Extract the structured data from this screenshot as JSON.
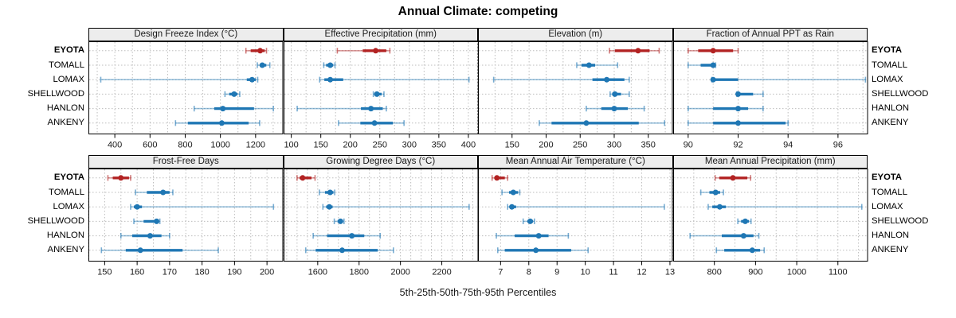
{
  "title": "Annual Climate: competing",
  "axis_label": "5th-25th-50th-75th-95th Percentiles",
  "colors": {
    "highlight": "#b22222",
    "normal": "#1f77b4",
    "grid": "#bdbdbd",
    "strip_bg": "#ededed",
    "panel_border": "#000000"
  },
  "chart_data": {
    "type": "scatter",
    "variant": "trellis-percentile-dotplot-with-error-bars",
    "title": "Annual Climate: competing",
    "xlabel": "5th-25th-50th-75th-95th Percentiles",
    "categories": [
      "EYOTA",
      "TOMALL",
      "LOMAX",
      "SHELLWOOD",
      "HANLON",
      "ANKENY"
    ],
    "highlight_category": "EYOTA",
    "grid": "dotted",
    "legend": "none",
    "percentiles_order": [
      "p5",
      "p25",
      "p50",
      "p75",
      "p95"
    ],
    "panels": [
      {
        "title": "Design Freeze Index (°C)",
        "row": 0,
        "col": 0,
        "xlim": [
          250,
          1357
        ],
        "ticks": [
          400,
          600,
          800,
          1000,
          1200
        ],
        "grid_step": 100,
        "series": [
          {
            "site": "EYOTA",
            "values": [
              1145,
              1172,
              1226,
              1252,
              1262
            ]
          },
          {
            "site": "TOMALL",
            "values": [
              1210,
              1226,
              1238,
              1261,
              1281
            ]
          },
          {
            "site": "LOMAX",
            "values": [
              320,
              1150,
              1180,
              1201,
              1212
            ]
          },
          {
            "site": "SHELLWOOD",
            "values": [
              1026,
              1050,
              1078,
              1097,
              1110
            ]
          },
          {
            "site": "HANLON",
            "values": [
              851,
              965,
              1014,
              1191,
              1301
            ]
          },
          {
            "site": "ANKENY",
            "values": [
              745,
              815,
              1008,
              1160,
              1223
            ]
          }
        ]
      },
      {
        "title": "Effective Precipitation (mm)",
        "row": 0,
        "col": 1,
        "xlim": [
          87,
          417
        ],
        "ticks": [
          100,
          150,
          200,
          250,
          300,
          350,
          400
        ],
        "grid_step": 25,
        "series": [
          {
            "site": "EYOTA",
            "values": [
              178,
              221,
              243,
              261,
              267
            ]
          },
          {
            "site": "TOMALL",
            "values": [
              155,
              159,
              166,
              171,
              174
            ]
          },
          {
            "site": "LOMAX",
            "values": [
              148,
              156,
              166,
              188,
              401
            ]
          },
          {
            "site": "SHELLWOOD",
            "values": [
              239,
              241,
              245,
              253,
              257
            ]
          },
          {
            "site": "HANLON",
            "values": [
              110,
              218,
              235,
              255,
              261
            ]
          },
          {
            "site": "ANKENY",
            "values": [
              180,
              217,
              241,
              272,
              291
            ]
          }
        ]
      },
      {
        "title": "Elevation (m)",
        "row": 0,
        "col": 2,
        "xlim": [
          100,
          386
        ],
        "ticks": [
          150,
          200,
          250,
          300,
          350
        ],
        "grid_step": 25,
        "series": [
          {
            "site": "EYOTA",
            "values": [
              293,
              301,
              335,
              352,
              366
            ]
          },
          {
            "site": "TOMALL",
            "values": [
              245,
              252,
              263,
              272,
              305
            ]
          },
          {
            "site": "LOMAX",
            "values": [
              123,
              268,
              289,
              315,
              322
            ]
          },
          {
            "site": "SHELLWOOD",
            "values": [
              294,
              297,
              301,
              310,
              322
            ]
          },
          {
            "site": "HANLON",
            "values": [
              259,
              281,
              300,
              320,
              344
            ]
          },
          {
            "site": "ANKENY",
            "values": [
              190,
              208,
              259,
              336,
              374
            ]
          }
        ]
      },
      {
        "title": "Fraction of Annual PPT as Rain",
        "row": 0,
        "col": 3,
        "xlim": [
          89.4,
          97.2
        ],
        "ticks": [
          90,
          92,
          94,
          96
        ],
        "grid_step": 1,
        "series": [
          {
            "site": "EYOTA",
            "values": [
              90,
              90.4,
              91,
              91.8,
              92
            ]
          },
          {
            "site": "TOMALL",
            "values": [
              90,
              90.5,
              91,
              91.05,
              91.1
            ]
          },
          {
            "site": "LOMAX",
            "values": [
              90.95,
              91,
              91,
              92,
              97.1
            ]
          },
          {
            "site": "SHELLWOOD",
            "values": [
              91.95,
              92,
              92,
              92.6,
              93
            ]
          },
          {
            "site": "HANLON",
            "values": [
              90,
              91,
              92,
              92.4,
              93
            ]
          },
          {
            "site": "ANKENY",
            "values": [
              90,
              91,
              92,
              93.9,
              94
            ]
          }
        ]
      },
      {
        "title": "Frost-Free Days",
        "row": 1,
        "col": 0,
        "xlim": [
          145,
          205
        ],
        "ticks": [
          150,
          160,
          170,
          180,
          190,
          200
        ],
        "grid_step": 5,
        "series": [
          {
            "site": "EYOTA",
            "values": [
              151,
              152.5,
              155,
              157.5,
              158
            ]
          },
          {
            "site": "TOMALL",
            "values": [
              159.5,
              163,
              168,
              170,
              171
            ]
          },
          {
            "site": "LOMAX",
            "values": [
              158,
              159,
              160,
              161.5,
              202
            ]
          },
          {
            "site": "SHELLWOOD",
            "values": [
              159,
              162,
              166,
              166.5,
              167
            ]
          },
          {
            "site": "HANLON",
            "values": [
              155,
              158.5,
              164,
              167.5,
              170
            ]
          },
          {
            "site": "ANKENY",
            "values": [
              149,
              156.5,
              161,
              174,
              185
            ]
          }
        ]
      },
      {
        "title": "Growing Degree Days (°C)",
        "row": 1,
        "col": 1,
        "xlim": [
          1435,
          2377
        ],
        "ticks": [
          1600,
          1800,
          2000,
          2200
        ],
        "grid_step": 50,
        "series": [
          {
            "site": "EYOTA",
            "values": [
              1500,
              1512,
              1527,
              1570,
              1587
            ]
          },
          {
            "site": "TOMALL",
            "values": [
              1608,
              1635,
              1660,
              1676,
              1682
            ]
          },
          {
            "site": "LOMAX",
            "values": [
              1625,
              1641,
              1656,
              1672,
              2332
            ]
          },
          {
            "site": "SHELLWOOD",
            "values": [
              1680,
              1696,
              1710,
              1721,
              1727
            ]
          },
          {
            "site": "HANLON",
            "values": [
              1578,
              1645,
              1765,
              1825,
              1902
            ]
          },
          {
            "site": "ANKENY",
            "values": [
              1542,
              1590,
              1718,
              1890,
              1966
            ]
          }
        ]
      },
      {
        "title": "Mean Annual Air Temperature (°C)",
        "row": 1,
        "col": 2,
        "xlim": [
          6.2,
          13.1
        ],
        "ticks": [
          7,
          8,
          9,
          10,
          11,
          12,
          13
        ],
        "grid_step": 1,
        "series": [
          {
            "site": "EYOTA",
            "values": [
              6.7,
              6.8,
              6.87,
              7.15,
              7.25
            ]
          },
          {
            "site": "TOMALL",
            "values": [
              7.05,
              7.3,
              7.45,
              7.62,
              7.68
            ]
          },
          {
            "site": "LOMAX",
            "values": [
              7.25,
              7.32,
              7.4,
              7.55,
              12.8
            ]
          },
          {
            "site": "SHELLWOOD",
            "values": [
              7.8,
              7.95,
              8.05,
              8.15,
              8.2
            ]
          },
          {
            "site": "HANLON",
            "values": [
              6.85,
              7.5,
              8.35,
              8.7,
              9.4
            ]
          },
          {
            "site": "ANKENY",
            "values": [
              6.9,
              7.15,
              8.25,
              9.5,
              10.1
            ]
          }
        ]
      },
      {
        "title": "Mean Annual Precipitation (mm)",
        "row": 1,
        "col": 3,
        "xlim": [
          700,
          1173
        ],
        "ticks": [
          800,
          900,
          1000,
          1100
        ],
        "grid_step": 50,
        "series": [
          {
            "site": "EYOTA",
            "values": [
              802,
              812,
              845,
              880,
              888
            ]
          },
          {
            "site": "TOMALL",
            "values": [
              767,
              788,
              803,
              814,
              822
            ]
          },
          {
            "site": "LOMAX",
            "values": [
              785,
              795,
              813,
              828,
              1158
            ]
          },
          {
            "site": "SHELLWOOD",
            "values": [
              857,
              865,
              875,
              884,
              889
            ]
          },
          {
            "site": "HANLON",
            "values": [
              741,
              818,
              871,
              895,
              908
            ]
          },
          {
            "site": "ANKENY",
            "values": [
              805,
              824,
              892,
              911,
              921
            ]
          }
        ]
      }
    ]
  }
}
